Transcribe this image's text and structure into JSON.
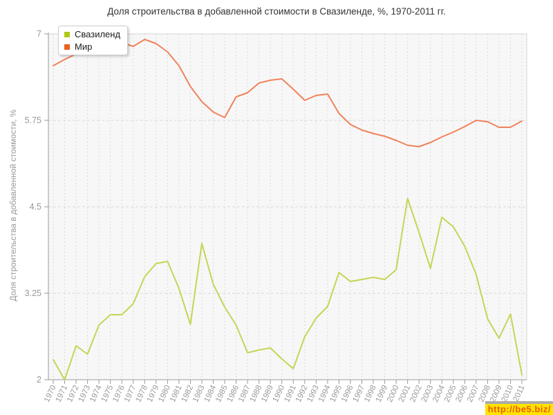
{
  "title": "Доля строительства в добавленной стоимости в Свазиленде, %, 1970-2011 гг.",
  "watermark": {
    "text": "http://be5.biz/"
  },
  "chart_data": {
    "type": "line",
    "title": "Доля строительства в добавленной стоимости в Свазиленде, %, 1970-2011 гг.",
    "xlabel": "",
    "ylabel": "Доля строительства в добавленной стоимости, %",
    "ylim": [
      2,
      7
    ],
    "y_ticks": [
      "7",
      "5.75",
      "4.5",
      "3.25",
      "2"
    ],
    "y_tick_values": [
      7,
      5.75,
      4.5,
      3.25,
      2
    ],
    "grid": true,
    "legend_position": "top-left",
    "plot_bg": "#f7f7f7",
    "grid_color": "#d9d9d9",
    "axis_color": "#999999",
    "tick_text_color": "#999999",
    "categories": [
      1970,
      1971,
      1972,
      1973,
      1974,
      1975,
      1976,
      1977,
      1978,
      1979,
      1980,
      1981,
      1982,
      1983,
      1984,
      1985,
      1986,
      1987,
      1988,
      1989,
      1990,
      1991,
      1992,
      1993,
      1994,
      1995,
      1996,
      1997,
      1998,
      1999,
      2000,
      2001,
      2002,
      2003,
      2004,
      2005,
      2006,
      2007,
      2008,
      2009,
      2010,
      2011
    ],
    "series": [
      {
        "name": "Свазиленд",
        "color": "#b0c818",
        "line_color": "#c6d455",
        "values": [
          2.29,
          2.0,
          2.49,
          2.37,
          2.79,
          2.94,
          2.94,
          3.1,
          3.49,
          3.68,
          3.71,
          3.32,
          2.8,
          3.97,
          3.38,
          3.05,
          2.79,
          2.39,
          2.43,
          2.46,
          2.3,
          2.16,
          2.62,
          2.89,
          3.06,
          3.55,
          3.42,
          3.45,
          3.48,
          3.45,
          3.59,
          4.62,
          4.13,
          3.61,
          4.35,
          4.21,
          3.93,
          3.52,
          2.88,
          2.6,
          2.95,
          2.07
        ]
      },
      {
        "name": "Мир",
        "color": "#e8611f",
        "line_color": "#f0825a",
        "values": [
          6.54,
          6.63,
          6.71,
          6.79,
          6.72,
          6.79,
          6.87,
          6.82,
          6.92,
          6.86,
          6.74,
          6.54,
          6.24,
          6.02,
          5.87,
          5.79,
          6.09,
          6.15,
          6.29,
          6.33,
          6.35,
          6.2,
          6.04,
          6.11,
          6.13,
          5.85,
          5.69,
          5.61,
          5.56,
          5.52,
          5.46,
          5.39,
          5.37,
          5.43,
          5.51,
          5.58,
          5.66,
          5.75,
          5.73,
          5.65,
          5.65,
          5.74
        ]
      }
    ]
  }
}
